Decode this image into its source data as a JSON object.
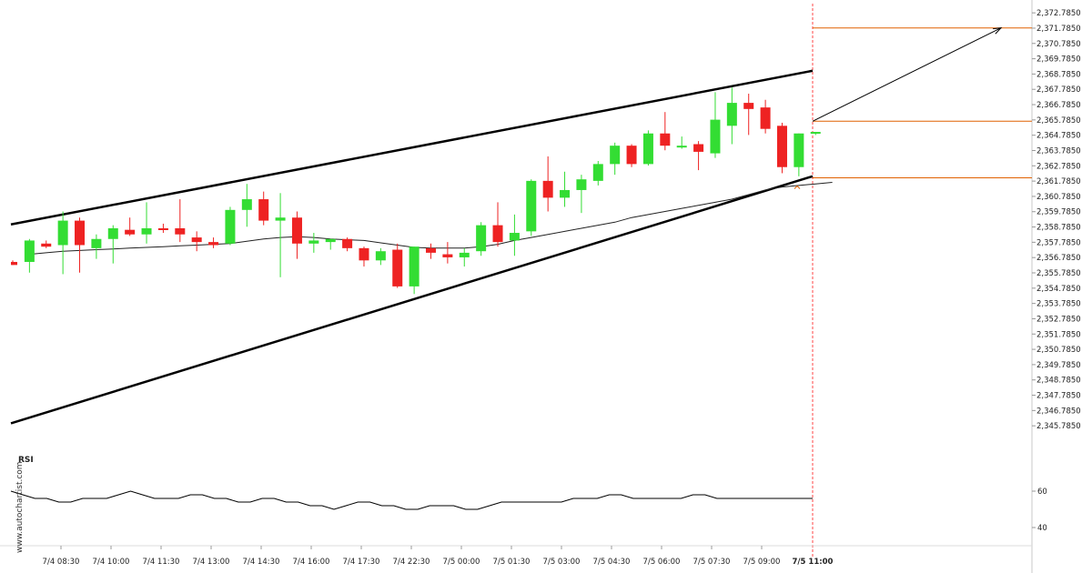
{
  "watermark": "www.autochartist.com",
  "chart_data": {
    "type": "candlestick",
    "price_axis": {
      "ticks": [
        "2,372.7850",
        "2,371.7850",
        "2,370.7850",
        "2,369.7850",
        "2,368.7850",
        "2,367.7850",
        "2,366.7850",
        "2,365.7850",
        "2,364.7850",
        "2,363.7850",
        "2,362.7850",
        "2,361.7850",
        "2,360.7850",
        "2,359.7850",
        "2,358.7850",
        "2,357.7850",
        "2,356.7850",
        "2,355.7850",
        "2,354.7850",
        "2,353.7850",
        "2,352.7850",
        "2,351.7850",
        "2,350.7850",
        "2,349.7850",
        "2,348.7850",
        "2,347.7850",
        "2,346.7850",
        "2,345.7850"
      ],
      "range": [
        2345.2,
        2373.15
      ]
    },
    "time_axis": {
      "labels": [
        "7/4 08:30",
        "7/4 10:00",
        "7/4 11:30",
        "7/4 13:00",
        "7/4 14:30",
        "7/4 16:00",
        "7/4 17:30",
        "7/4 22:30",
        "7/5 00:00",
        "7/5 01:30",
        "7/5 03:00",
        "7/5 04:30",
        "7/5 06:00",
        "7/5 07:30",
        "7/5 09:00"
      ],
      "current_label": "7/5 11:00"
    },
    "up_color": "#33dd33",
    "down_color": "#ee2222",
    "candles": [
      {
        "o": 2356.5,
        "h": 2356.6,
        "l": 2356.3,
        "c": 2356.3
      },
      {
        "o": 2356.5,
        "h": 2358.0,
        "l": 2355.8,
        "c": 2357.9
      },
      {
        "o": 2357.7,
        "h": 2357.9,
        "l": 2357.4,
        "c": 2357.5
      },
      {
        "o": 2357.6,
        "h": 2359.8,
        "l": 2355.7,
        "c": 2359.2
      },
      {
        "o": 2359.2,
        "h": 2359.4,
        "l": 2355.8,
        "c": 2357.6
      },
      {
        "o": 2357.4,
        "h": 2358.3,
        "l": 2356.7,
        "c": 2358.0
      },
      {
        "o": 2358.0,
        "h": 2358.9,
        "l": 2356.4,
        "c": 2358.7
      },
      {
        "o": 2358.6,
        "h": 2359.4,
        "l": 2358.2,
        "c": 2358.3
      },
      {
        "o": 2358.3,
        "h": 2360.4,
        "l": 2357.7,
        "c": 2358.7
      },
      {
        "o": 2358.7,
        "h": 2359.0,
        "l": 2358.4,
        "c": 2358.6
      },
      {
        "o": 2358.7,
        "h": 2360.6,
        "l": 2357.8,
        "c": 2358.3
      },
      {
        "o": 2358.1,
        "h": 2358.5,
        "l": 2357.2,
        "c": 2357.8
      },
      {
        "o": 2357.8,
        "h": 2358.1,
        "l": 2357.4,
        "c": 2357.6
      },
      {
        "o": 2357.7,
        "h": 2360.1,
        "l": 2357.6,
        "c": 2359.9
      },
      {
        "o": 2359.9,
        "h": 2361.6,
        "l": 2358.8,
        "c": 2360.6
      },
      {
        "o": 2360.6,
        "h": 2361.1,
        "l": 2358.9,
        "c": 2359.2
      },
      {
        "o": 2359.2,
        "h": 2361.0,
        "l": 2355.5,
        "c": 2359.4
      },
      {
        "o": 2359.4,
        "h": 2359.8,
        "l": 2356.7,
        "c": 2357.7
      },
      {
        "o": 2357.7,
        "h": 2358.4,
        "l": 2357.1,
        "c": 2357.9
      },
      {
        "o": 2357.8,
        "h": 2358.0,
        "l": 2357.3,
        "c": 2358.0
      },
      {
        "o": 2358.0,
        "h": 2358.1,
        "l": 2357.2,
        "c": 2357.4
      },
      {
        "o": 2357.4,
        "h": 2357.5,
        "l": 2356.2,
        "c": 2356.6
      },
      {
        "o": 2356.6,
        "h": 2357.4,
        "l": 2356.3,
        "c": 2357.2
      },
      {
        "o": 2357.3,
        "h": 2357.7,
        "l": 2354.8,
        "c": 2354.9
      },
      {
        "o": 2354.9,
        "h": 2357.5,
        "l": 2354.4,
        "c": 2357.5
      },
      {
        "o": 2357.4,
        "h": 2357.7,
        "l": 2356.7,
        "c": 2357.1
      },
      {
        "o": 2357.0,
        "h": 2357.8,
        "l": 2356.4,
        "c": 2356.8
      },
      {
        "o": 2356.8,
        "h": 2357.4,
        "l": 2356.2,
        "c": 2357.1
      },
      {
        "o": 2357.2,
        "h": 2359.1,
        "l": 2356.9,
        "c": 2358.9
      },
      {
        "o": 2358.9,
        "h": 2360.4,
        "l": 2357.5,
        "c": 2357.8
      },
      {
        "o": 2357.9,
        "h": 2359.6,
        "l": 2356.9,
        "c": 2358.4
      },
      {
        "o": 2358.5,
        "h": 2361.9,
        "l": 2358.2,
        "c": 2361.8
      },
      {
        "o": 2361.8,
        "h": 2363.4,
        "l": 2359.8,
        "c": 2360.7
      },
      {
        "o": 2360.7,
        "h": 2362.4,
        "l": 2360.1,
        "c": 2361.2
      },
      {
        "o": 2361.2,
        "h": 2362.2,
        "l": 2359.7,
        "c": 2361.9
      },
      {
        "o": 2361.8,
        "h": 2363.1,
        "l": 2361.5,
        "c": 2362.9
      },
      {
        "o": 2362.9,
        "h": 2364.3,
        "l": 2362.2,
        "c": 2364.1
      },
      {
        "o": 2364.1,
        "h": 2364.2,
        "l": 2362.7,
        "c": 2362.9
      },
      {
        "o": 2362.9,
        "h": 2365.1,
        "l": 2362.8,
        "c": 2364.9
      },
      {
        "o": 2364.9,
        "h": 2366.3,
        "l": 2363.8,
        "c": 2364.1
      },
      {
        "o": 2364.0,
        "h": 2364.7,
        "l": 2363.9,
        "c": 2364.1
      },
      {
        "o": 2364.2,
        "h": 2364.4,
        "l": 2362.5,
        "c": 2363.7
      },
      {
        "o": 2363.6,
        "h": 2367.6,
        "l": 2363.3,
        "c": 2365.8
      },
      {
        "o": 2365.4,
        "h": 2367.9,
        "l": 2364.2,
        "c": 2366.9
      },
      {
        "o": 2366.9,
        "h": 2367.5,
        "l": 2364.8,
        "c": 2366.5
      },
      {
        "o": 2366.6,
        "h": 2367.1,
        "l": 2364.9,
        "c": 2365.2
      },
      {
        "o": 2365.4,
        "h": 2365.6,
        "l": 2362.3,
        "c": 2362.7
      },
      {
        "o": 2362.7,
        "h": 2364.9,
        "l": 2362.1,
        "c": 2364.9
      },
      {
        "o": 2364.9,
        "h": 2365.0,
        "l": 2364.8,
        "c": 2365.0
      }
    ],
    "moving_average": [
      2357.0,
      2357.1,
      2357.2,
      2357.25,
      2357.3,
      2357.35,
      2357.4,
      2357.45,
      2357.5,
      2357.55,
      2357.6,
      2357.65,
      2357.7,
      2357.85,
      2358.0,
      2358.1,
      2358.15,
      2358.1,
      2358.0,
      2357.95,
      2357.9,
      2357.75,
      2357.6,
      2357.45,
      2357.4,
      2357.4,
      2357.4,
      2357.5,
      2357.65,
      2357.9,
      2358.1,
      2358.3,
      2358.5,
      2358.7,
      2358.9,
      2359.1,
      2359.4,
      2359.6,
      2359.8,
      2360.0,
      2360.2,
      2360.4,
      2360.6,
      2360.9,
      2361.2,
      2361.4,
      2361.5,
      2361.6,
      2361.7
    ],
    "pattern": {
      "name": "Rising Wedge",
      "upper_line": [
        2358.95,
        2369.0
      ],
      "lower_line": [
        2345.95,
        2362.1
      ]
    },
    "forecast": {
      "target_level": 2371.8,
      "entry_level": 2365.7,
      "support_level": 2362.0,
      "line_color": "#e06000"
    },
    "rsi": {
      "title": "RSI",
      "ticks": [
        "60",
        "40"
      ],
      "range": [
        30,
        70
      ],
      "values": [
        60,
        58,
        56,
        56,
        54,
        54,
        56,
        56,
        56,
        58,
        60,
        58,
        56,
        56,
        56,
        58,
        58,
        56,
        56,
        54,
        54,
        56,
        56,
        54,
        54,
        52,
        52,
        50,
        52,
        54,
        54,
        52,
        52,
        50,
        50,
        52,
        52,
        52,
        50,
        50,
        52,
        54,
        54,
        54,
        54,
        54,
        54,
        56,
        56,
        56,
        58,
        58,
        56,
        56,
        56,
        56,
        56,
        58,
        58,
        56,
        56,
        56,
        56,
        56,
        56,
        56,
        56,
        56
      ]
    }
  }
}
